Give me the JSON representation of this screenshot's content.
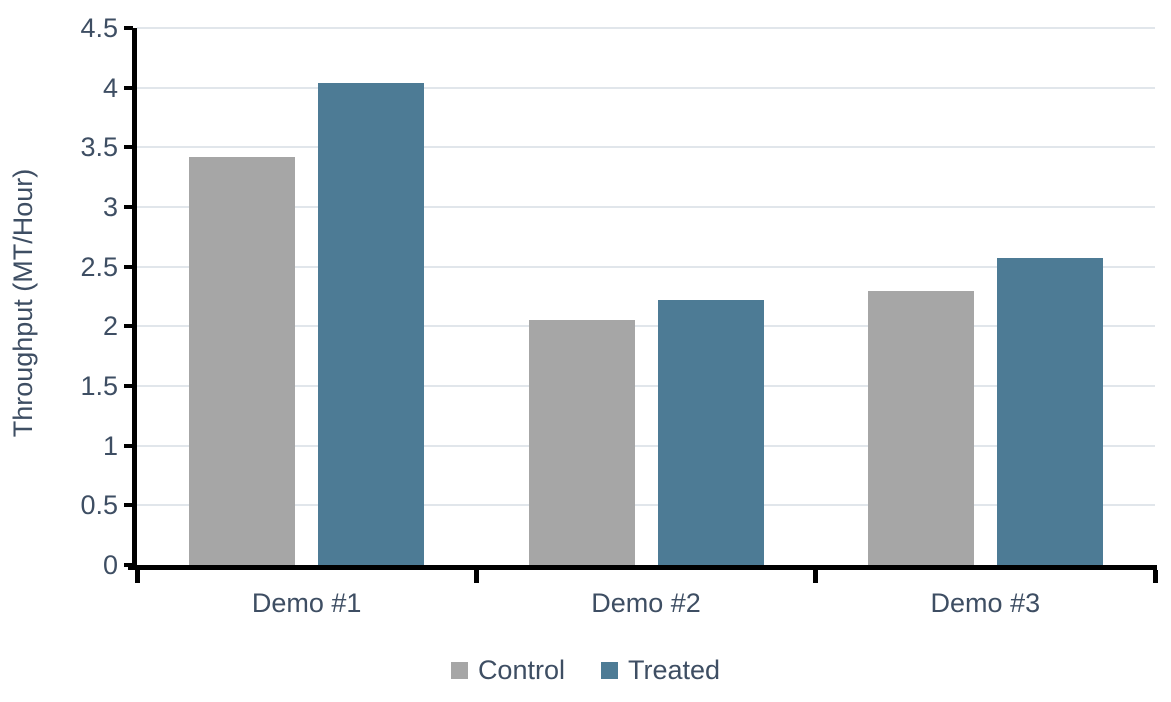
{
  "chart_data": {
    "type": "bar",
    "title": "",
    "xlabel": "",
    "ylabel": "Throughput (MT/Hour)",
    "ylim": [
      0,
      4.5
    ],
    "grid": true,
    "legend_position": "bottom",
    "categories": [
      "Demo #1",
      "Demo #2",
      "Demo #3"
    ],
    "series": [
      {
        "name": "Control",
        "color": "#a6a6a6",
        "values": [
          3.42,
          2.05,
          2.3
        ]
      },
      {
        "name": "Treated",
        "color": "#4d7b95",
        "values": [
          4.04,
          2.22,
          2.57
        ]
      }
    ],
    "ytick_values": [
      0,
      0.5,
      1,
      1.5,
      2,
      2.5,
      3,
      3.5,
      4,
      4.5
    ],
    "ytick_labels": [
      "0",
      "0.5",
      "1",
      "1.5",
      "2",
      "2.5",
      "3",
      "3.5",
      "4",
      "4.5"
    ],
    "colors": {
      "axis": "#000000",
      "gridline": "#e1e6eb",
      "text": "#3e4e63",
      "background": "#ffffff"
    }
  }
}
